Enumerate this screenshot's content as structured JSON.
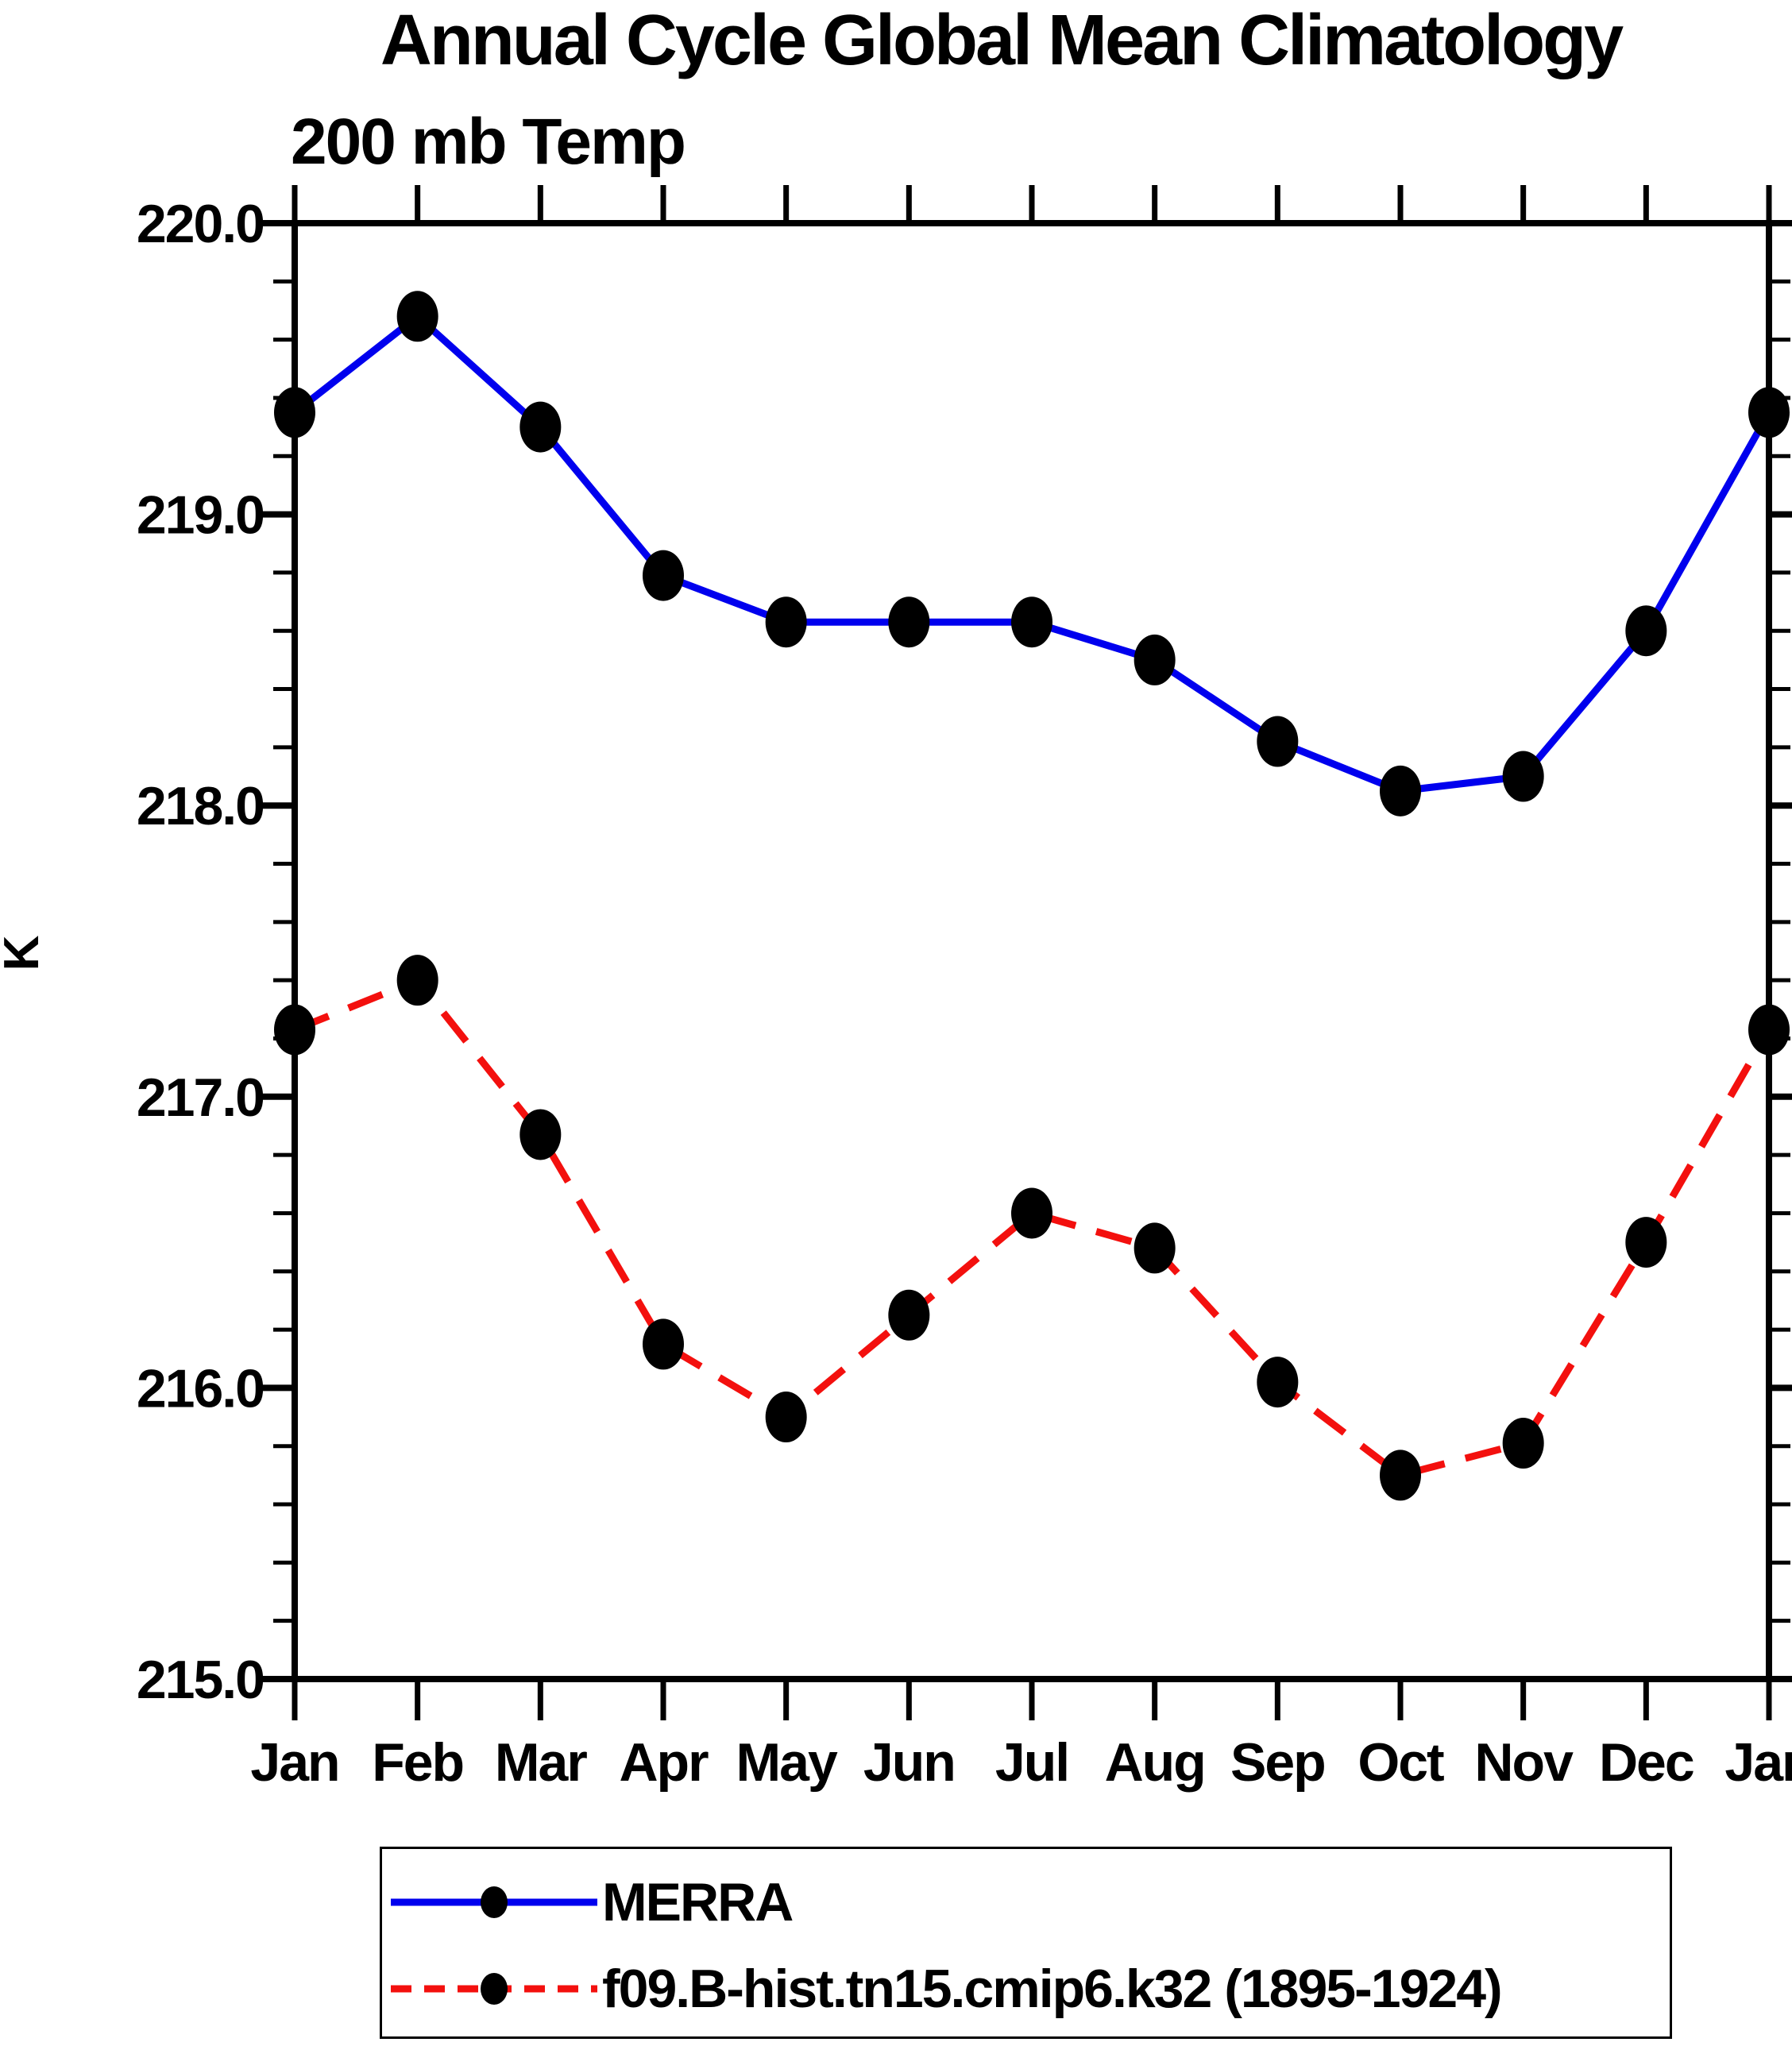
{
  "chart_data": {
    "type": "line",
    "title": "Annual Cycle Global Mean Climatology",
    "subtitle": "200 mb Temp",
    "ylabel": "K",
    "x_categories": [
      "Jan",
      "Feb",
      "Mar",
      "Apr",
      "May",
      "Jun",
      "Jul",
      "Aug",
      "Sep",
      "Oct",
      "Nov",
      "Dec",
      "Jan"
    ],
    "ylim": [
      215.0,
      220.0
    ],
    "ytick_major_interval": 1.0,
    "ytick_minor_interval": 0.2,
    "ytick_labels": [
      "220.0",
      "219.0",
      "218.0",
      "217.0",
      "216.0",
      "215.0"
    ],
    "grid": "off",
    "legend_position": "bottom",
    "marker_color": "#000000",
    "axis_color": "#000000",
    "series": [
      {
        "name": "MERRA",
        "color": "#0000EE",
        "style": "solid",
        "marker": "filled-circle",
        "values": [
          219.35,
          219.68,
          219.3,
          218.79,
          218.63,
          218.63,
          218.63,
          218.5,
          218.22,
          218.05,
          218.1,
          218.6,
          219.35
        ]
      },
      {
        "name": "f09.B-hist.tn15.cmip6.k32 (1895-1924)",
        "color": "#F3100E",
        "style": "dashed",
        "marker": "filled-circle",
        "values": [
          217.23,
          217.4,
          216.87,
          216.15,
          215.9,
          216.25,
          216.6,
          216.48,
          216.02,
          215.7,
          215.81,
          216.5,
          217.23
        ]
      }
    ]
  }
}
